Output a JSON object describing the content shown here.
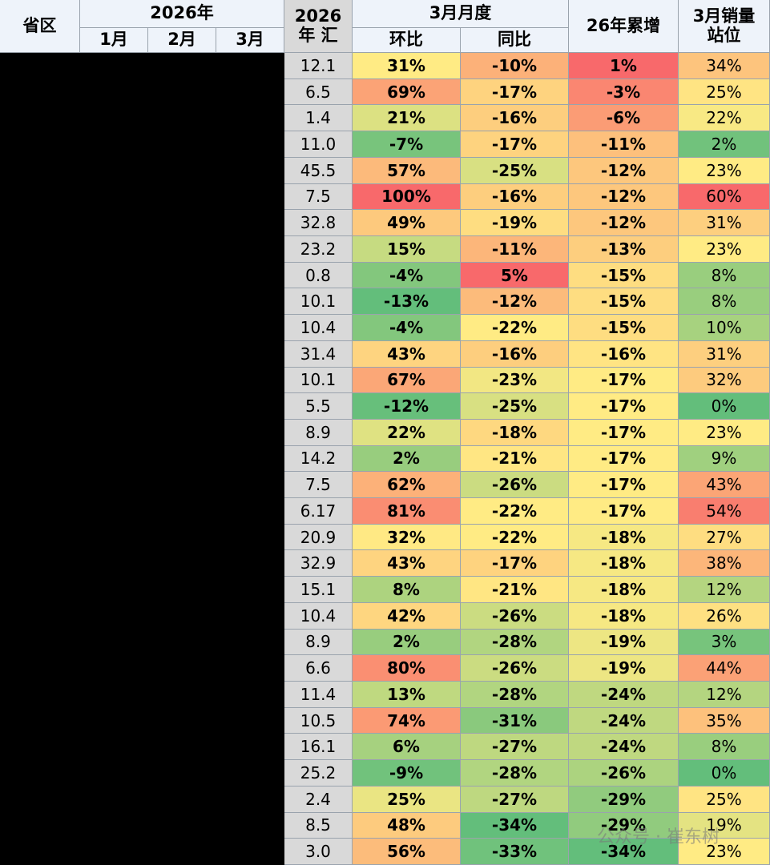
{
  "header": {
    "province": "省区",
    "year": "2026年",
    "months": [
      "1月",
      "2月",
      "3月"
    ],
    "total": [
      "2026",
      "年 汇"
    ],
    "march": "3月月度",
    "mom": "环比",
    "yoy": "同比",
    "cumulative": "26年累增",
    "rank": [
      "3月销量",
      "站位"
    ]
  },
  "table": {
    "rows": [
      [
        "12.1",
        "31%",
        "-10%",
        "1%",
        "34%"
      ],
      [
        "6.5",
        "69%",
        "-17%",
        "-3%",
        "25%"
      ],
      [
        "1.4",
        "21%",
        "-16%",
        "-6%",
        "22%"
      ],
      [
        "11.0",
        "-7%",
        "-17%",
        "-11%",
        "2%"
      ],
      [
        "45.5",
        "57%",
        "-25%",
        "-12%",
        "23%"
      ],
      [
        "7.5",
        "100%",
        "-16%",
        "-12%",
        "60%"
      ],
      [
        "32.8",
        "49%",
        "-19%",
        "-12%",
        "31%"
      ],
      [
        "23.2",
        "15%",
        "-11%",
        "-13%",
        "23%"
      ],
      [
        "0.8",
        "-4%",
        "5%",
        "-15%",
        "8%"
      ],
      [
        "10.1",
        "-13%",
        "-12%",
        "-15%",
        "8%"
      ],
      [
        "10.4",
        "-4%",
        "-22%",
        "-15%",
        "10%"
      ],
      [
        "31.4",
        "43%",
        "-16%",
        "-16%",
        "31%"
      ],
      [
        "10.1",
        "67%",
        "-23%",
        "-17%",
        "32%"
      ],
      [
        "5.5",
        "-12%",
        "-25%",
        "-17%",
        "0%"
      ],
      [
        "8.9",
        "22%",
        "-18%",
        "-17%",
        "23%"
      ],
      [
        "14.2",
        "2%",
        "-21%",
        "-17%",
        "9%"
      ],
      [
        "7.5",
        "62%",
        "-26%",
        "-17%",
        "43%"
      ],
      [
        "6.17",
        "81%",
        "-22%",
        "-17%",
        "54%"
      ],
      [
        "20.9",
        "32%",
        "-22%",
        "-18%",
        "27%"
      ],
      [
        "32.9",
        "43%",
        "-17%",
        "-18%",
        "38%"
      ],
      [
        "15.1",
        "8%",
        "-21%",
        "-18%",
        "12%"
      ],
      [
        "10.4",
        "42%",
        "-26%",
        "-18%",
        "26%"
      ],
      [
        "8.9",
        "2%",
        "-28%",
        "-19%",
        "3%"
      ],
      [
        "6.6",
        "80%",
        "-26%",
        "-19%",
        "44%"
      ],
      [
        "11.4",
        "13%",
        "-28%",
        "-24%",
        "12%"
      ],
      [
        "10.5",
        "74%",
        "-31%",
        "-24%",
        "35%"
      ],
      [
        "16.1",
        "6%",
        "-27%",
        "-24%",
        "8%"
      ],
      [
        "25.2",
        "-9%",
        "-28%",
        "-26%",
        "0%"
      ],
      [
        "2.4",
        "25%",
        "-27%",
        "-29%",
        "25%"
      ],
      [
        "8.5",
        "48%",
        "-34%",
        "-29%",
        "19%"
      ],
      [
        "3.0",
        "56%",
        "-33%",
        "-34%",
        "23%"
      ]
    ]
  },
  "watermark": "公众号 · 崔东树"
}
